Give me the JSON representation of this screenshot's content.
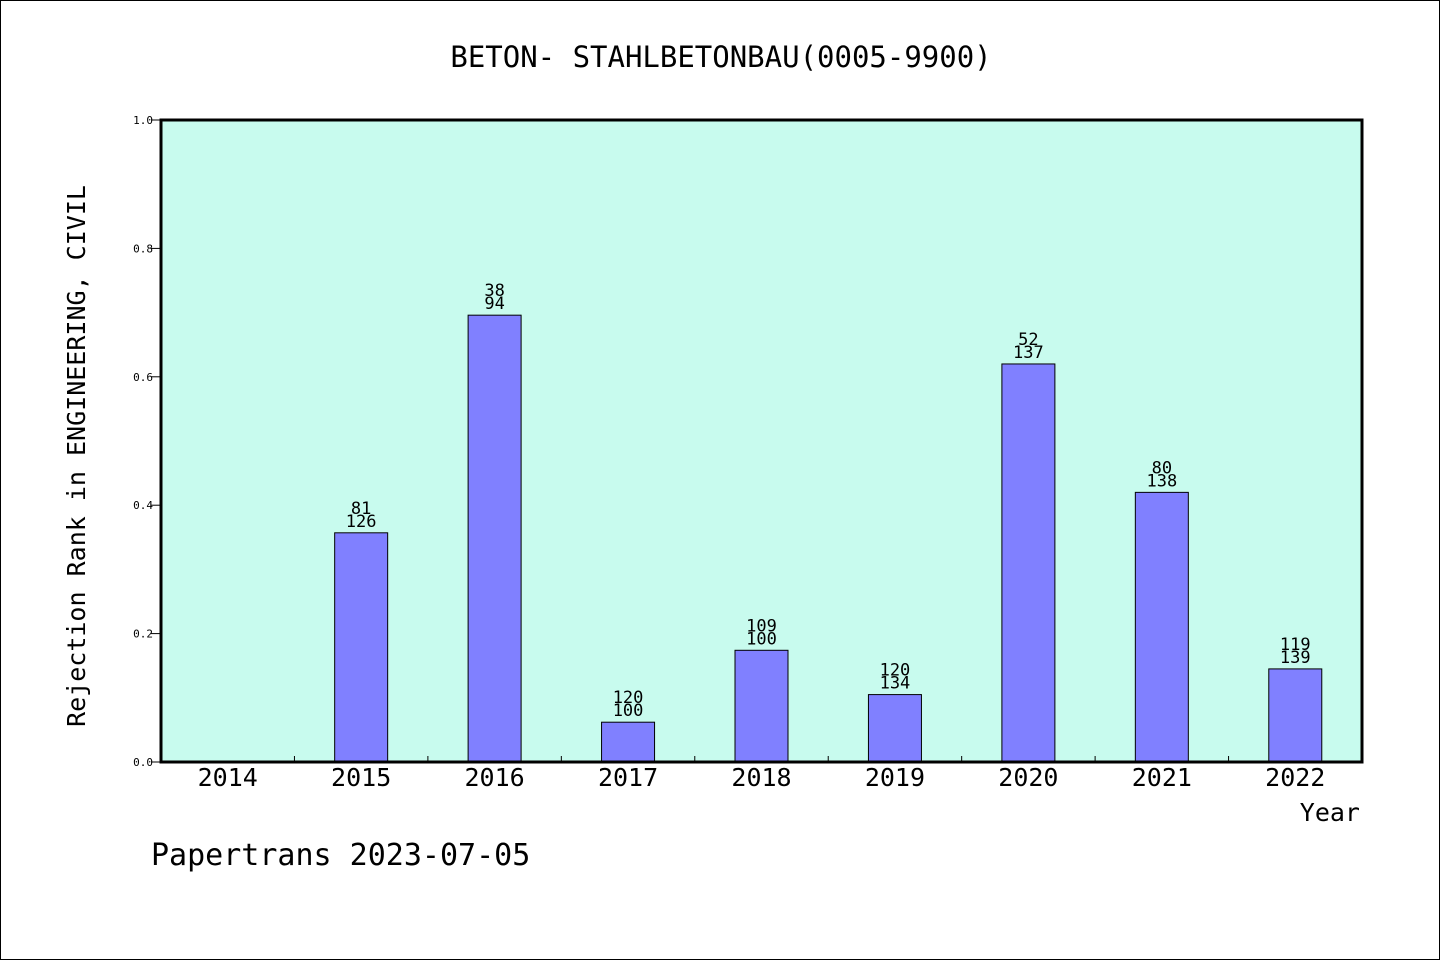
{
  "chart_data": {
    "type": "bar",
    "title": "BETON- STAHLBETONBAU(0005-9900)",
    "xlabel": "Year",
    "ylabel": "Rejection Rank in ENGINEERING, CIVIL",
    "categories": [
      "2014",
      "2015",
      "2016",
      "2017",
      "2018",
      "2019",
      "2020",
      "2021",
      "2022"
    ],
    "values": [
      0,
      0.357,
      0.696,
      0.062,
      0.174,
      0.105,
      0.62,
      0.42,
      0.145
    ],
    "labels_top": [
      "",
      "81",
      "38",
      "120",
      "109",
      "120",
      "52",
      "80",
      "119"
    ],
    "labels_bottom": [
      "",
      "126",
      "94",
      "100",
      "100",
      "134",
      "137",
      "138",
      "139"
    ],
    "ylim": [
      0,
      1.0
    ],
    "yticks": [
      "0.0",
      "0.2",
      "0.4",
      "0.6",
      "0.8",
      "1.0"
    ],
    "grid": false,
    "colors": {
      "plot_bg": "#c8fbee",
      "bar": "#8080ff",
      "bar_edge": "#000000"
    }
  },
  "footer": "Papertrans 2023-07-05"
}
